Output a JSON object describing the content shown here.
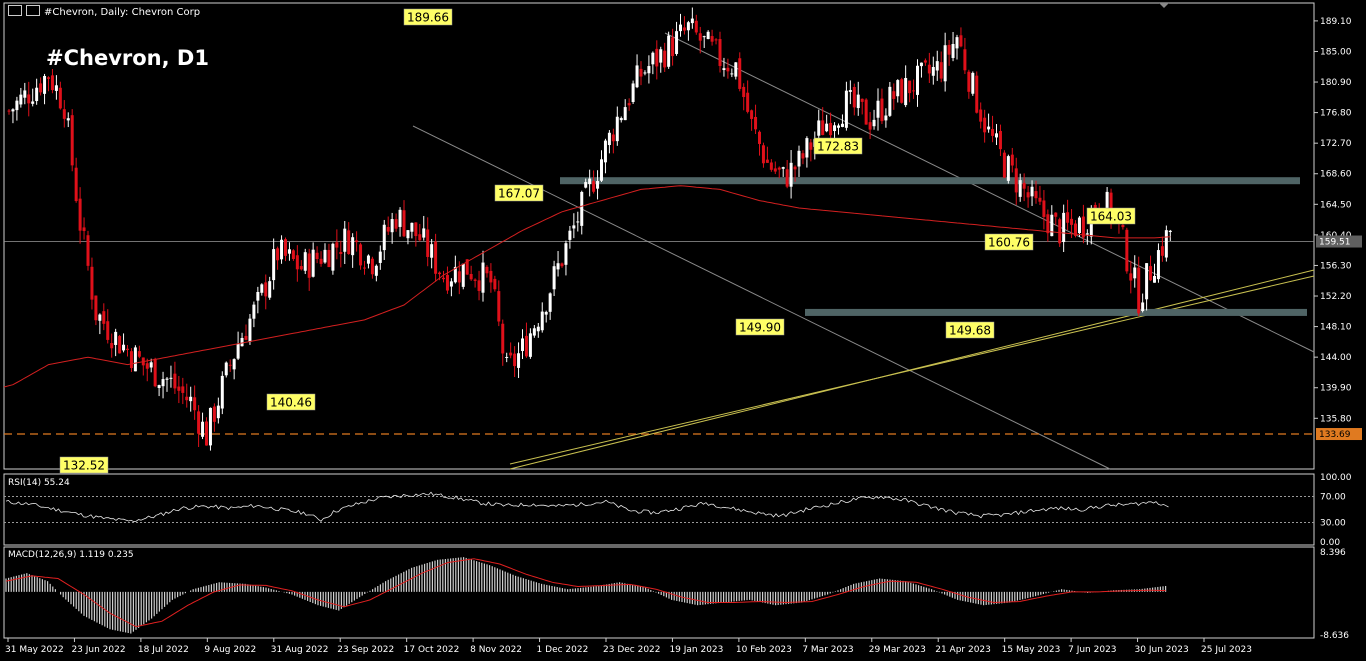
{
  "header": {
    "symbol_info": "#Chevron, Daily:  Chevron Corp"
  },
  "chart_title": "#Chevron, D1",
  "colors": {
    "background": "#000000",
    "bull": "#ffffff",
    "bear": "#e0101a",
    "ma": "#d32020",
    "zone": "#4f6465",
    "trend_gray": "#8a8a8a",
    "trend_gold": "#c8c050",
    "support_dash": "#e07a20",
    "annotation_bg": "#ffff66",
    "annotation_text": "#000000",
    "grid_border": "#d0d0d0"
  },
  "chart_data": [
    {
      "type": "candlestick",
      "title": "#Chevron, D1",
      "ylim": [
        129.0,
        191.5
      ],
      "y_ticks": [
        "189.10",
        "185.00",
        "180.90",
        "176.80",
        "172.70",
        "168.60",
        "164.50",
        "160.40",
        "156.30",
        "152.20",
        "148.10",
        "144.00",
        "139.90",
        "135.80"
      ],
      "x_ticks": [
        "31 May 2022",
        "23 Jun 2022",
        "18 Jul 2022",
        "9 Aug 2022",
        "31 Aug 2022",
        "23 Sep 2022",
        "17 Oct 2022",
        "8 Nov 2022",
        "1 Dec 2022",
        "23 Dec 2022",
        "19 Jan 2023",
        "10 Feb 2023",
        "7 Mar 2023",
        "29 Mar 2023",
        "21 Apr 2023",
        "15 May 2023",
        "7 Jun 2023",
        "30 Jun 2023",
        "25 Jul 2023"
      ],
      "bars": 295,
      "price_path": [
        [
          0,
          177
        ],
        [
          6,
          180
        ],
        [
          10,
          182
        ],
        [
          14,
          178
        ],
        [
          18,
          162
        ],
        [
          22,
          150
        ],
        [
          28,
          146
        ],
        [
          34,
          143
        ],
        [
          40,
          141
        ],
        [
          46,
          138
        ],
        [
          50,
          133.5
        ],
        [
          54,
          140
        ],
        [
          58,
          146
        ],
        [
          63,
          151
        ],
        [
          68,
          158
        ],
        [
          74,
          156
        ],
        [
          80,
          158
        ],
        [
          86,
          160
        ],
        [
          92,
          157
        ],
        [
          98,
          163
        ],
        [
          104,
          160
        ],
        [
          110,
          155
        ],
        [
          116,
          156
        ],
        [
          122,
          154
        ],
        [
          126,
          142
        ],
        [
          130,
          145
        ],
        [
          136,
          152
        ],
        [
          142,
          160
        ],
        [
          148,
          168
        ],
        [
          154,
          176
        ],
        [
          160,
          182
        ],
        [
          166,
          185
        ],
        [
          172,
          188
        ],
        [
          176,
          186
        ],
        [
          180,
          184
        ],
        [
          184,
          183
        ],
        [
          188,
          175
        ],
        [
          192,
          170
        ],
        [
          196,
          168
        ],
        [
          200,
          170
        ],
        [
          206,
          175
        ],
        [
          212,
          178
        ],
        [
          218,
          176
        ],
        [
          224,
          179
        ],
        [
          230,
          181
        ],
        [
          236,
          183
        ],
        [
          240,
          187
        ],
        [
          244,
          180
        ],
        [
          248,
          174
        ],
        [
          252,
          170
        ],
        [
          256,
          167
        ],
        [
          260,
          164
        ],
        [
          266,
          161
        ],
        [
          272,
          162
        ],
        [
          276,
          165
        ],
        [
          280,
          163
        ],
        [
          286,
          152
        ],
        [
          290,
          157
        ],
        [
          295,
          162
        ]
      ],
      "moving_average": [
        [
          0,
          140
        ],
        [
          10,
          143
        ],
        [
          20,
          144
        ],
        [
          30,
          143
        ],
        [
          40,
          144
        ],
        [
          50,
          145
        ],
        [
          60,
          146
        ],
        [
          70,
          147
        ],
        [
          80,
          148
        ],
        [
          90,
          149
        ],
        [
          100,
          151
        ],
        [
          110,
          155
        ],
        [
          120,
          158
        ],
        [
          130,
          161
        ],
        [
          140,
          163.5
        ],
        [
          150,
          165
        ],
        [
          160,
          166.5
        ],
        [
          170,
          167
        ],
        [
          180,
          166.5
        ],
        [
          190,
          165
        ],
        [
          200,
          164
        ],
        [
          210,
          163.5
        ],
        [
          220,
          163
        ],
        [
          230,
          162.5
        ],
        [
          240,
          162
        ],
        [
          250,
          161.5
        ],
        [
          260,
          161
        ],
        [
          270,
          160.5
        ],
        [
          280,
          160
        ],
        [
          290,
          160
        ],
        [
          295,
          160.2
        ]
      ],
      "current_price": "159.51",
      "dashed_support_price": "133.69",
      "zones": [
        {
          "name": "resistance-zone",
          "price": 167.6
        },
        {
          "name": "support-zone",
          "price": 150.0
        }
      ],
      "annotations": [
        {
          "text": "189.66",
          "price": 189.66
        },
        {
          "text": "167.07",
          "price": 167.07
        },
        {
          "text": "172.83",
          "price": 172.83
        },
        {
          "text": "164.03",
          "price": 164.03
        },
        {
          "text": "160.76",
          "price": 160.76
        },
        {
          "text": "149.90",
          "price": 149.9
        },
        {
          "text": "149.68",
          "price": 149.68
        },
        {
          "text": "140.46",
          "price": 140.46
        },
        {
          "text": "132.52",
          "price": 132.52
        }
      ]
    },
    {
      "type": "line",
      "name": "rsi",
      "label": "RSI(14) 55.24",
      "ylim": [
        0,
        100
      ],
      "y_ticks": [
        "100.00",
        "70.00",
        "30.00",
        "0.00"
      ],
      "levels": [
        70,
        30
      ],
      "values": [
        [
          0,
          62
        ],
        [
          10,
          58
        ],
        [
          20,
          50
        ],
        [
          30,
          42
        ],
        [
          40,
          36
        ],
        [
          50,
          32
        ],
        [
          60,
          40
        ],
        [
          70,
          52
        ],
        [
          80,
          55
        ],
        [
          90,
          52
        ],
        [
          100,
          56
        ],
        [
          110,
          50
        ],
        [
          120,
          44
        ],
        [
          126,
          34
        ],
        [
          132,
          48
        ],
        [
          140,
          58
        ],
        [
          150,
          68
        ],
        [
          160,
          72
        ],
        [
          170,
          74
        ],
        [
          180,
          68
        ],
        [
          190,
          60
        ],
        [
          200,
          56
        ],
        [
          210,
          58
        ],
        [
          220,
          55
        ],
        [
          230,
          58
        ],
        [
          240,
          62
        ],
        [
          250,
          48
        ],
        [
          260,
          45
        ],
        [
          270,
          52
        ],
        [
          280,
          60
        ],
        [
          290,
          52
        ],
        [
          300,
          45
        ],
        [
          310,
          40
        ],
        [
          320,
          50
        ],
        [
          330,
          58
        ],
        [
          340,
          66
        ],
        [
          350,
          70
        ],
        [
          360,
          64
        ],
        [
          370,
          54
        ],
        [
          380,
          45
        ],
        [
          390,
          40
        ],
        [
          400,
          42
        ],
        [
          410,
          48
        ],
        [
          420,
          52
        ],
        [
          430,
          50
        ],
        [
          440,
          56
        ],
        [
          450,
          58
        ],
        [
          460,
          62
        ],
        [
          465,
          55
        ]
      ]
    },
    {
      "type": "histogram",
      "name": "macd",
      "label": "MACD(12,26,9) 1.119 0.235",
      "ylim": [
        -8.636,
        8.396
      ],
      "y_ticks": [
        "8.396",
        "-8.636"
      ],
      "hist": [
        [
          0,
          2.5
        ],
        [
          8,
          3.5
        ],
        [
          16,
          2.0
        ],
        [
          22,
          -1.0
        ],
        [
          30,
          -4.5
        ],
        [
          40,
          -7.0
        ],
        [
          48,
          -7.8
        ],
        [
          56,
          -5.0
        ],
        [
          64,
          -1.5
        ],
        [
          72,
          0.5
        ],
        [
          82,
          1.8
        ],
        [
          92,
          1.5
        ],
        [
          100,
          0.8
        ],
        [
          110,
          -0.5
        ],
        [
          120,
          -2.5
        ],
        [
          128,
          -3.5
        ],
        [
          136,
          -1.0
        ],
        [
          146,
          2.0
        ],
        [
          156,
          4.5
        ],
        [
          166,
          6.0
        ],
        [
          176,
          6.5
        ],
        [
          186,
          5.0
        ],
        [
          196,
          3.0
        ],
        [
          206,
          1.5
        ],
        [
          216,
          0.5
        ],
        [
          226,
          1.0
        ],
        [
          236,
          1.8
        ],
        [
          246,
          0.8
        ],
        [
          256,
          -1.5
        ],
        [
          266,
          -2.5
        ],
        [
          276,
          -2.0
        ],
        [
          286,
          -1.5
        ],
        [
          296,
          -2.5
        ],
        [
          306,
          -2.0
        ],
        [
          316,
          -0.5
        ],
        [
          326,
          1.5
        ],
        [
          336,
          2.5
        ],
        [
          346,
          2.0
        ],
        [
          356,
          0.5
        ],
        [
          366,
          -1.5
        ],
        [
          376,
          -2.5
        ],
        [
          386,
          -2.0
        ],
        [
          396,
          -0.8
        ],
        [
          406,
          0.5
        ],
        [
          416,
          -0.2
        ],
        [
          426,
          0.3
        ],
        [
          436,
          0.5
        ],
        [
          446,
          1.1
        ]
      ],
      "signal": [
        [
          0,
          2.0
        ],
        [
          10,
          3.0
        ],
        [
          20,
          2.5
        ],
        [
          30,
          -0.5
        ],
        [
          40,
          -4.0
        ],
        [
          50,
          -6.5
        ],
        [
          60,
          -5.5
        ],
        [
          70,
          -2.5
        ],
        [
          80,
          0.0
        ],
        [
          90,
          1.3
        ],
        [
          100,
          1.2
        ],
        [
          110,
          0.2
        ],
        [
          120,
          -1.5
        ],
        [
          130,
          -2.8
        ],
        [
          140,
          -1.5
        ],
        [
          150,
          1.0
        ],
        [
          160,
          3.5
        ],
        [
          170,
          5.5
        ],
        [
          180,
          6.2
        ],
        [
          190,
          5.2
        ],
        [
          200,
          3.3
        ],
        [
          210,
          1.8
        ],
        [
          220,
          1.0
        ],
        [
          230,
          1.2
        ],
        [
          240,
          1.4
        ],
        [
          250,
          0.5
        ],
        [
          260,
          -1.0
        ],
        [
          270,
          -2.0
        ],
        [
          280,
          -2.0
        ],
        [
          290,
          -1.8
        ],
        [
          300,
          -2.0
        ],
        [
          310,
          -1.8
        ],
        [
          320,
          -0.5
        ],
        [
          330,
          1.0
        ],
        [
          340,
          2.0
        ],
        [
          350,
          1.8
        ],
        [
          360,
          0.5
        ],
        [
          370,
          -1.0
        ],
        [
          380,
          -2.0
        ],
        [
          390,
          -1.8
        ],
        [
          400,
          -0.8
        ],
        [
          410,
          0.0
        ],
        [
          420,
          0.0
        ],
        [
          430,
          0.2
        ],
        [
          440,
          0.3
        ],
        [
          446,
          0.235
        ]
      ]
    }
  ]
}
